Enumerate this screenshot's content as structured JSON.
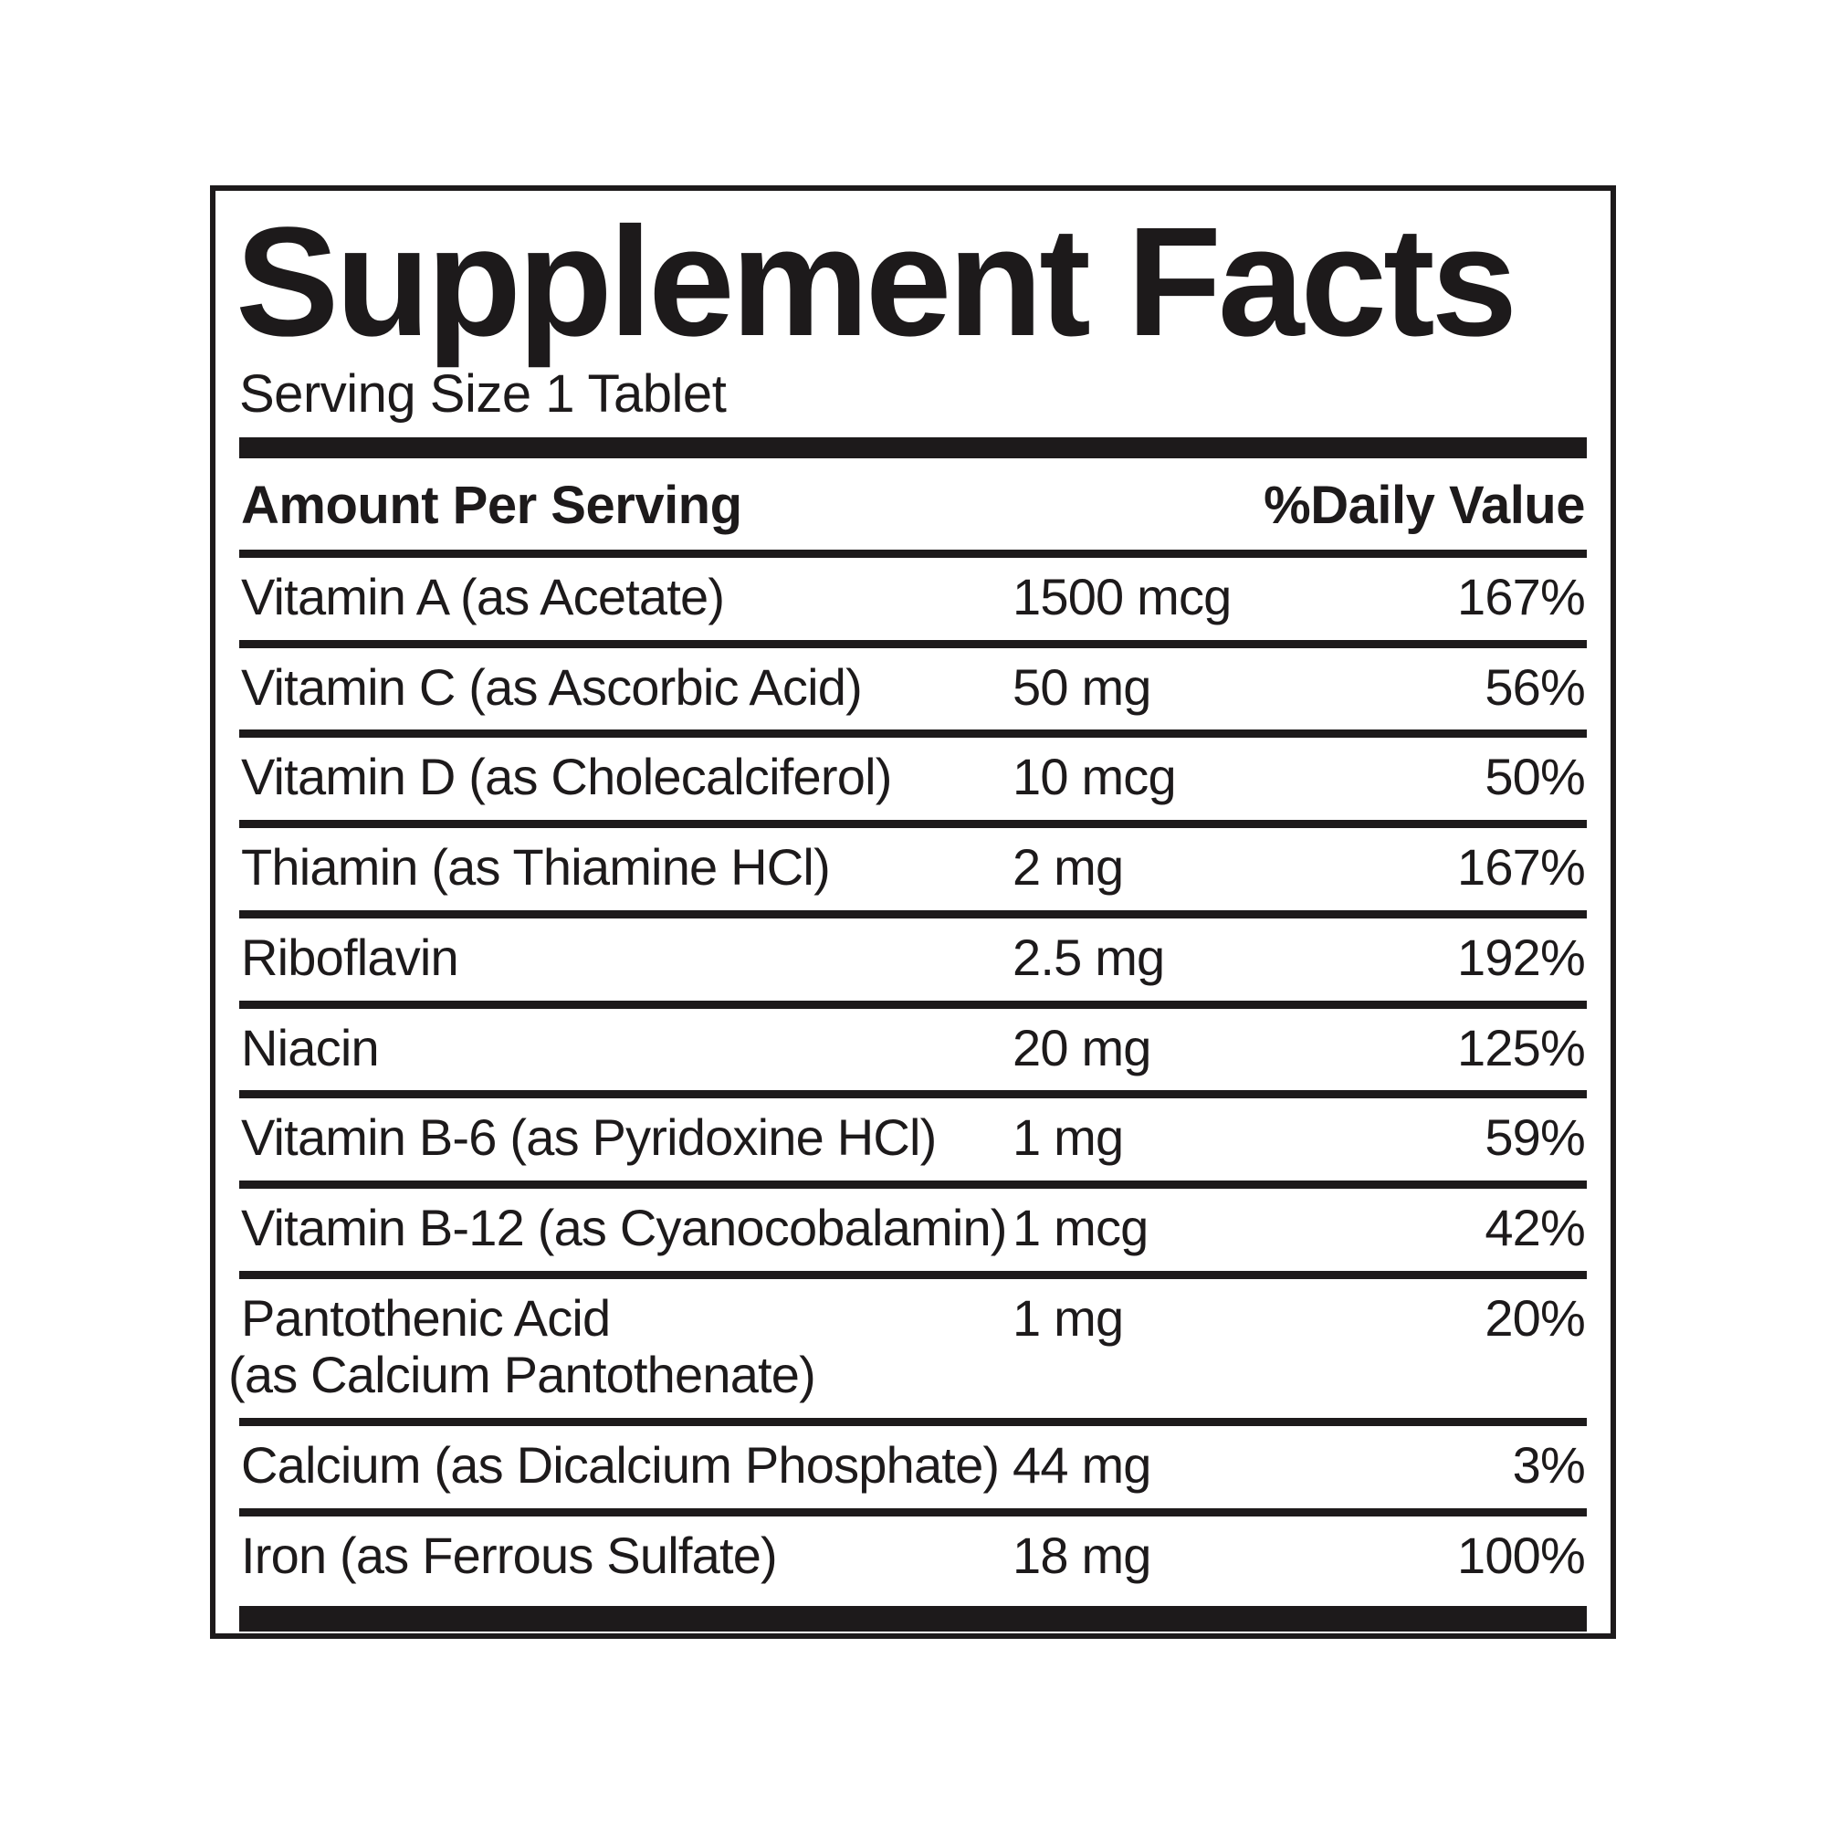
{
  "colors": {
    "ink": "#1d1a1b",
    "background": "#ffffff"
  },
  "label": {
    "title": "Supplement Facts",
    "serving_size": "Serving Size 1 Tablet",
    "columns": {
      "amount_header": "Amount Per Serving",
      "daily_value_header": "%Daily Value"
    },
    "rows": [
      {
        "name": "Vitamin A (as Acetate)",
        "amount": "1500 mcg",
        "dv": "167%"
      },
      {
        "name": "Vitamin C (as Ascorbic Acid)",
        "amount": "50 mg",
        "dv": "56%"
      },
      {
        "name": "Vitamin D (as Cholecalciferol)",
        "amount": "10 mcg",
        "dv": "50%"
      },
      {
        "name": "Thiamin (as Thiamine HCl)",
        "amount": "2 mg",
        "dv": "167%"
      },
      {
        "name": "Riboflavin",
        "amount": "2.5 mg",
        "dv": "192%"
      },
      {
        "name": "Niacin",
        "amount": "20 mg",
        "dv": "125%"
      },
      {
        "name": "Vitamin B-6 (as Pyridoxine HCl)",
        "amount": "1 mg",
        "dv": "59%"
      },
      {
        "name": "Vitamin B-12 (as Cyanocobalamin)",
        "amount": "1 mcg",
        "dv": "42%"
      },
      {
        "name": "Pantothenic Acid",
        "name2": "(as Calcium Pantothenate)",
        "amount": "1 mg",
        "dv": "20%"
      },
      {
        "name": "Calcium (as Dicalcium Phosphate)",
        "amount": "44 mg",
        "dv": "3%"
      },
      {
        "name": "Iron (as Ferrous Sulfate)",
        "amount": "18 mg",
        "dv": "100%"
      }
    ]
  }
}
